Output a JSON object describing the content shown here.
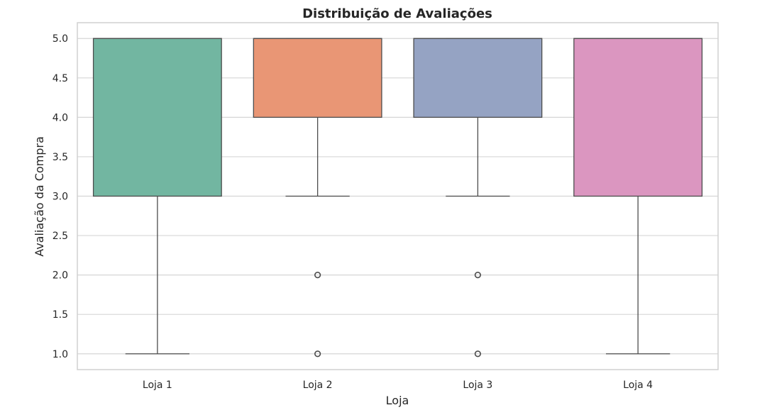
{
  "chart_data": {
    "type": "boxplot",
    "title": "Distribuição de Avaliações",
    "xlabel": "Loja",
    "ylabel": "Avaliação da Compra",
    "ylim": [
      0.8,
      5.2
    ],
    "yticks": [
      "1.0",
      "1.5",
      "2.0",
      "2.5",
      "3.0",
      "3.5",
      "4.0",
      "4.5",
      "5.0"
    ],
    "grid": true,
    "categories": [
      "Loja 1",
      "Loja 2",
      "Loja 3",
      "Loja 4"
    ],
    "boxes": [
      {
        "category": "Loja 1",
        "whisker_low": 1.0,
        "q1": 3.0,
        "median": 5.0,
        "q3": 5.0,
        "whisker_high": 5.0,
        "outliers": [],
        "color": "#72b6a1"
      },
      {
        "category": "Loja 2",
        "whisker_low": 3.0,
        "q1": 4.0,
        "median": 5.0,
        "q3": 5.0,
        "whisker_high": 5.0,
        "outliers": [
          1.0,
          2.0
        ],
        "color": "#e99675"
      },
      {
        "category": "Loja 3",
        "whisker_low": 3.0,
        "q1": 4.0,
        "median": 5.0,
        "q3": 5.0,
        "whisker_high": 5.0,
        "outliers": [
          1.0,
          2.0
        ],
        "color": "#95a3c3"
      },
      {
        "category": "Loja 4",
        "whisker_low": 1.0,
        "q1": 3.0,
        "median": 5.0,
        "q3": 5.0,
        "whisker_high": 5.0,
        "outliers": [],
        "color": "#db96c0"
      }
    ],
    "colors": {
      "grid": "#d6d6d6",
      "frame": "#d0d0d0",
      "box_edge": "#4d4d4d"
    }
  }
}
